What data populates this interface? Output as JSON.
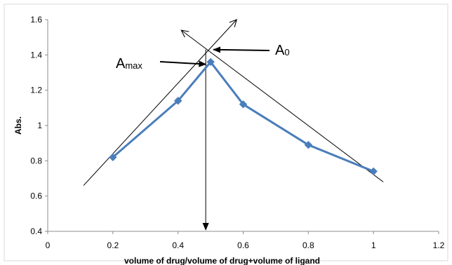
{
  "chart_data": {
    "type": "line",
    "title": "",
    "xlabel": "volume of drug/volume of drug+volume of ligand",
    "ylabel": "Abs.",
    "xlim": [
      0,
      1.2
    ],
    "ylim": [
      0.4,
      1.6
    ],
    "x_ticks": [
      "0",
      "0.2",
      "0.4",
      "0.6",
      "0.8",
      "1",
      "1.2"
    ],
    "y_ticks": [
      "0.4",
      "0.6",
      "0.8",
      "1",
      "1.2",
      "1.4",
      "1.6"
    ],
    "grid": false,
    "legend": "none",
    "series": [
      {
        "color": "#4a7ebb",
        "marker": "diamond",
        "x": [
          0.2,
          0.4,
          0.5,
          0.6,
          0.8,
          1.0
        ],
        "y": [
          0.82,
          1.14,
          1.36,
          1.12,
          0.89,
          0.74
        ]
      }
    ],
    "construction_lines": [
      {
        "from": [
          0.11,
          0.66
        ],
        "to": [
          0.58,
          1.6
        ],
        "arrow_end": true
      },
      {
        "from": [
          1.03,
          0.68
        ],
        "to": [
          0.41,
          1.54
        ],
        "arrow_end": true
      },
      {
        "from": [
          0.485,
          1.43
        ],
        "to": [
          0.485,
          0.4
        ],
        "arrow_end": true
      }
    ],
    "annotations": [
      {
        "label_main": "A",
        "label_sub": "max",
        "target": [
          0.49,
          1.355
        ]
      },
      {
        "label_main": "A",
        "label_sub": "0",
        "target": [
          0.5,
          1.43
        ]
      }
    ]
  }
}
